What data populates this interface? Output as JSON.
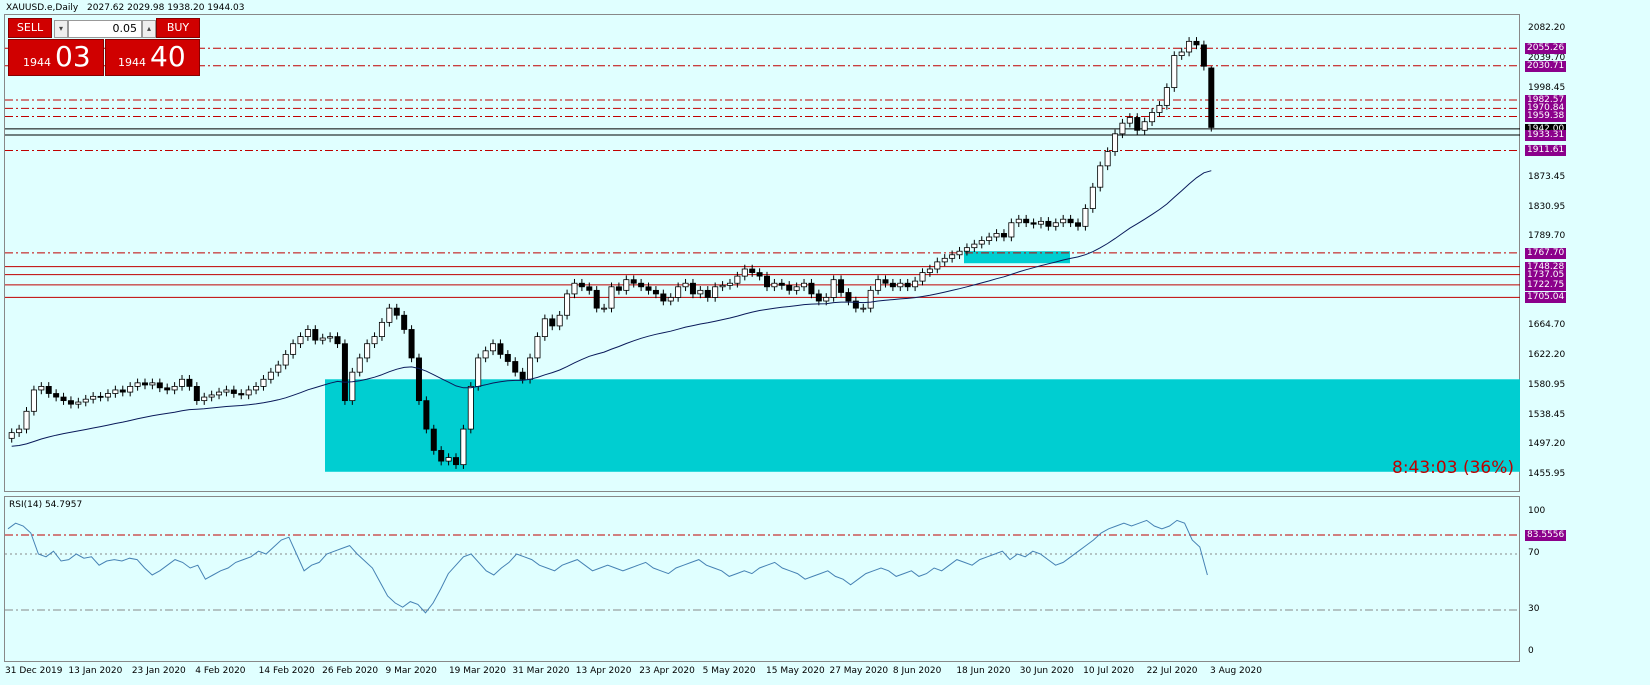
{
  "header": {
    "symbol": "XAUUSD.e,Daily",
    "ohlc": "2027.62 2029.98 1938.20 1944.03"
  },
  "trade_panel": {
    "sell_label": "SELL",
    "buy_label": "BUY",
    "lot": "0.05",
    "spin_down": "▾",
    "spin_up": "▴",
    "sell_small": "1944",
    "sell_big": "03",
    "buy_small": "1944",
    "buy_big": "40"
  },
  "timer": "8:43:03 (36%)",
  "rsi": {
    "title": "RSI(14) 54.7957",
    "levels": [
      "100",
      "70",
      "30",
      "0"
    ],
    "level_tag": "83.5556",
    "series": [
      88,
      92,
      90,
      85,
      70,
      68,
      72,
      65,
      66,
      70,
      67,
      68,
      62,
      65,
      66,
      65,
      67,
      66,
      60,
      55,
      58,
      62,
      66,
      64,
      60,
      62,
      52,
      55,
      58,
      60,
      64,
      66,
      68,
      72,
      70,
      75,
      80,
      82,
      70,
      58,
      62,
      64,
      70,
      72,
      74,
      76,
      70,
      65,
      60,
      50,
      40,
      35,
      32,
      36,
      34,
      28,
      35,
      45,
      56,
      62,
      68,
      70,
      64,
      58,
      55,
      60,
      64,
      70,
      68,
      66,
      62,
      60,
      58,
      62,
      64,
      66,
      62,
      58,
      60,
      62,
      60,
      58,
      60,
      62,
      64,
      60,
      58,
      56,
      60,
      62,
      64,
      66,
      62,
      60,
      58,
      54,
      56,
      58,
      56,
      60,
      62,
      64,
      60,
      58,
      56,
      52,
      54,
      56,
      58,
      54,
      52,
      48,
      52,
      56,
      58,
      60,
      58,
      54,
      56,
      58,
      54,
      56,
      60,
      58,
      62,
      66,
      64,
      62,
      66,
      68,
      70,
      72,
      66,
      70,
      68,
      72,
      70,
      66,
      62,
      64,
      68,
      72,
      76,
      80,
      85,
      88,
      90,
      92,
      90,
      92,
      94,
      90,
      88,
      90,
      94,
      92,
      80,
      75,
      55
    ]
  },
  "price_axis": [
    "2082.20",
    "2039.70",
    "1998.45",
    "1873.45",
    "1830.95",
    "1789.70",
    "1664.70",
    "1622.20",
    "1580.95",
    "1538.45",
    "1497.20",
    "1455.95"
  ],
  "price_tags": [
    "2055.26",
    "2030.71",
    "1982.57",
    "1970.84",
    "1959.38",
    "1942.00",
    "1933.31",
    "1911.61",
    "1767.70",
    "1748.28",
    "1737.05",
    "1722.75",
    "1705.04"
  ],
  "dates": [
    "31 Dec 2019",
    "13 Jan 2020",
    "23 Jan 2020",
    "4 Feb 2020",
    "14 Feb 2020",
    "26 Feb 2020",
    "9 Mar 2020",
    "19 Mar 2020",
    "31 Mar 2020",
    "13 Apr 2020",
    "23 Apr 2020",
    "5 May 2020",
    "15 May 2020",
    "27 May 2020",
    "8 Jun 2020",
    "18 Jun 2020",
    "30 Jun 2020",
    "10 Jul 2020",
    "22 Jul 2020",
    "3 Aug 2020"
  ],
  "colors": {
    "bg": "#E0FFFF",
    "zone": "#00CED1",
    "level_line": "#C00000",
    "ma": "#0A1A5A",
    "rsi": "#4682B4",
    "sell": "#D00000",
    "tag": "#8B008B"
  },
  "chart_data": {
    "type": "candlestick",
    "symbol": "XAUUSD.e",
    "timeframe": "Daily",
    "last_bar": {
      "open": 2027.62,
      "high": 2029.98,
      "low": 1938.2,
      "close": 1944.03
    },
    "closes": [
      1515,
      1520,
      1545,
      1575,
      1580,
      1570,
      1565,
      1560,
      1555,
      1558,
      1562,
      1566,
      1565,
      1570,
      1575,
      1572,
      1580,
      1585,
      1582,
      1585,
      1578,
      1575,
      1580,
      1590,
      1580,
      1560,
      1565,
      1568,
      1572,
      1575,
      1570,
      1568,
      1575,
      1580,
      1590,
      1600,
      1610,
      1625,
      1640,
      1650,
      1660,
      1645,
      1648,
      1650,
      1640,
      1560,
      1600,
      1620,
      1640,
      1650,
      1670,
      1690,
      1680,
      1660,
      1620,
      1560,
      1520,
      1490,
      1475,
      1480,
      1470,
      1520,
      1580,
      1620,
      1630,
      1640,
      1625,
      1615,
      1600,
      1590,
      1620,
      1650,
      1675,
      1665,
      1680,
      1710,
      1725,
      1720,
      1715,
      1690,
      1690,
      1720,
      1715,
      1730,
      1725,
      1720,
      1715,
      1710,
      1700,
      1705,
      1720,
      1725,
      1710,
      1715,
      1705,
      1720,
      1722,
      1725,
      1735,
      1745,
      1740,
      1735,
      1720,
      1725,
      1722,
      1715,
      1720,
      1725,
      1710,
      1700,
      1705,
      1730,
      1712,
      1700,
      1690,
      1690,
      1715,
      1730,
      1725,
      1720,
      1725,
      1720,
      1728,
      1740,
      1745,
      1755,
      1760,
      1765,
      1770,
      1775,
      1780,
      1785,
      1790,
      1795,
      1790,
      1810,
      1815,
      1810,
      1808,
      1812,
      1805,
      1810,
      1815,
      1810,
      1805,
      1830,
      1860,
      1890,
      1910,
      1935,
      1950,
      1958,
      1940,
      1952,
      1965,
      1975,
      2000,
      2045,
      2050,
      2065,
      2060,
      2030,
      1944
    ],
    "ma_start": 1495,
    "horizontal_lines": [
      2055.26,
      2030.71,
      1982.57,
      1970.84,
      1959.38,
      1942.0,
      1933.31,
      1911.61,
      1767.7,
      1748.28,
      1737.05,
      1722.75,
      1705.04
    ],
    "zone": {
      "from": 1460,
      "to": 1590
    },
    "ylim": [
      1440,
      2095
    ]
  }
}
